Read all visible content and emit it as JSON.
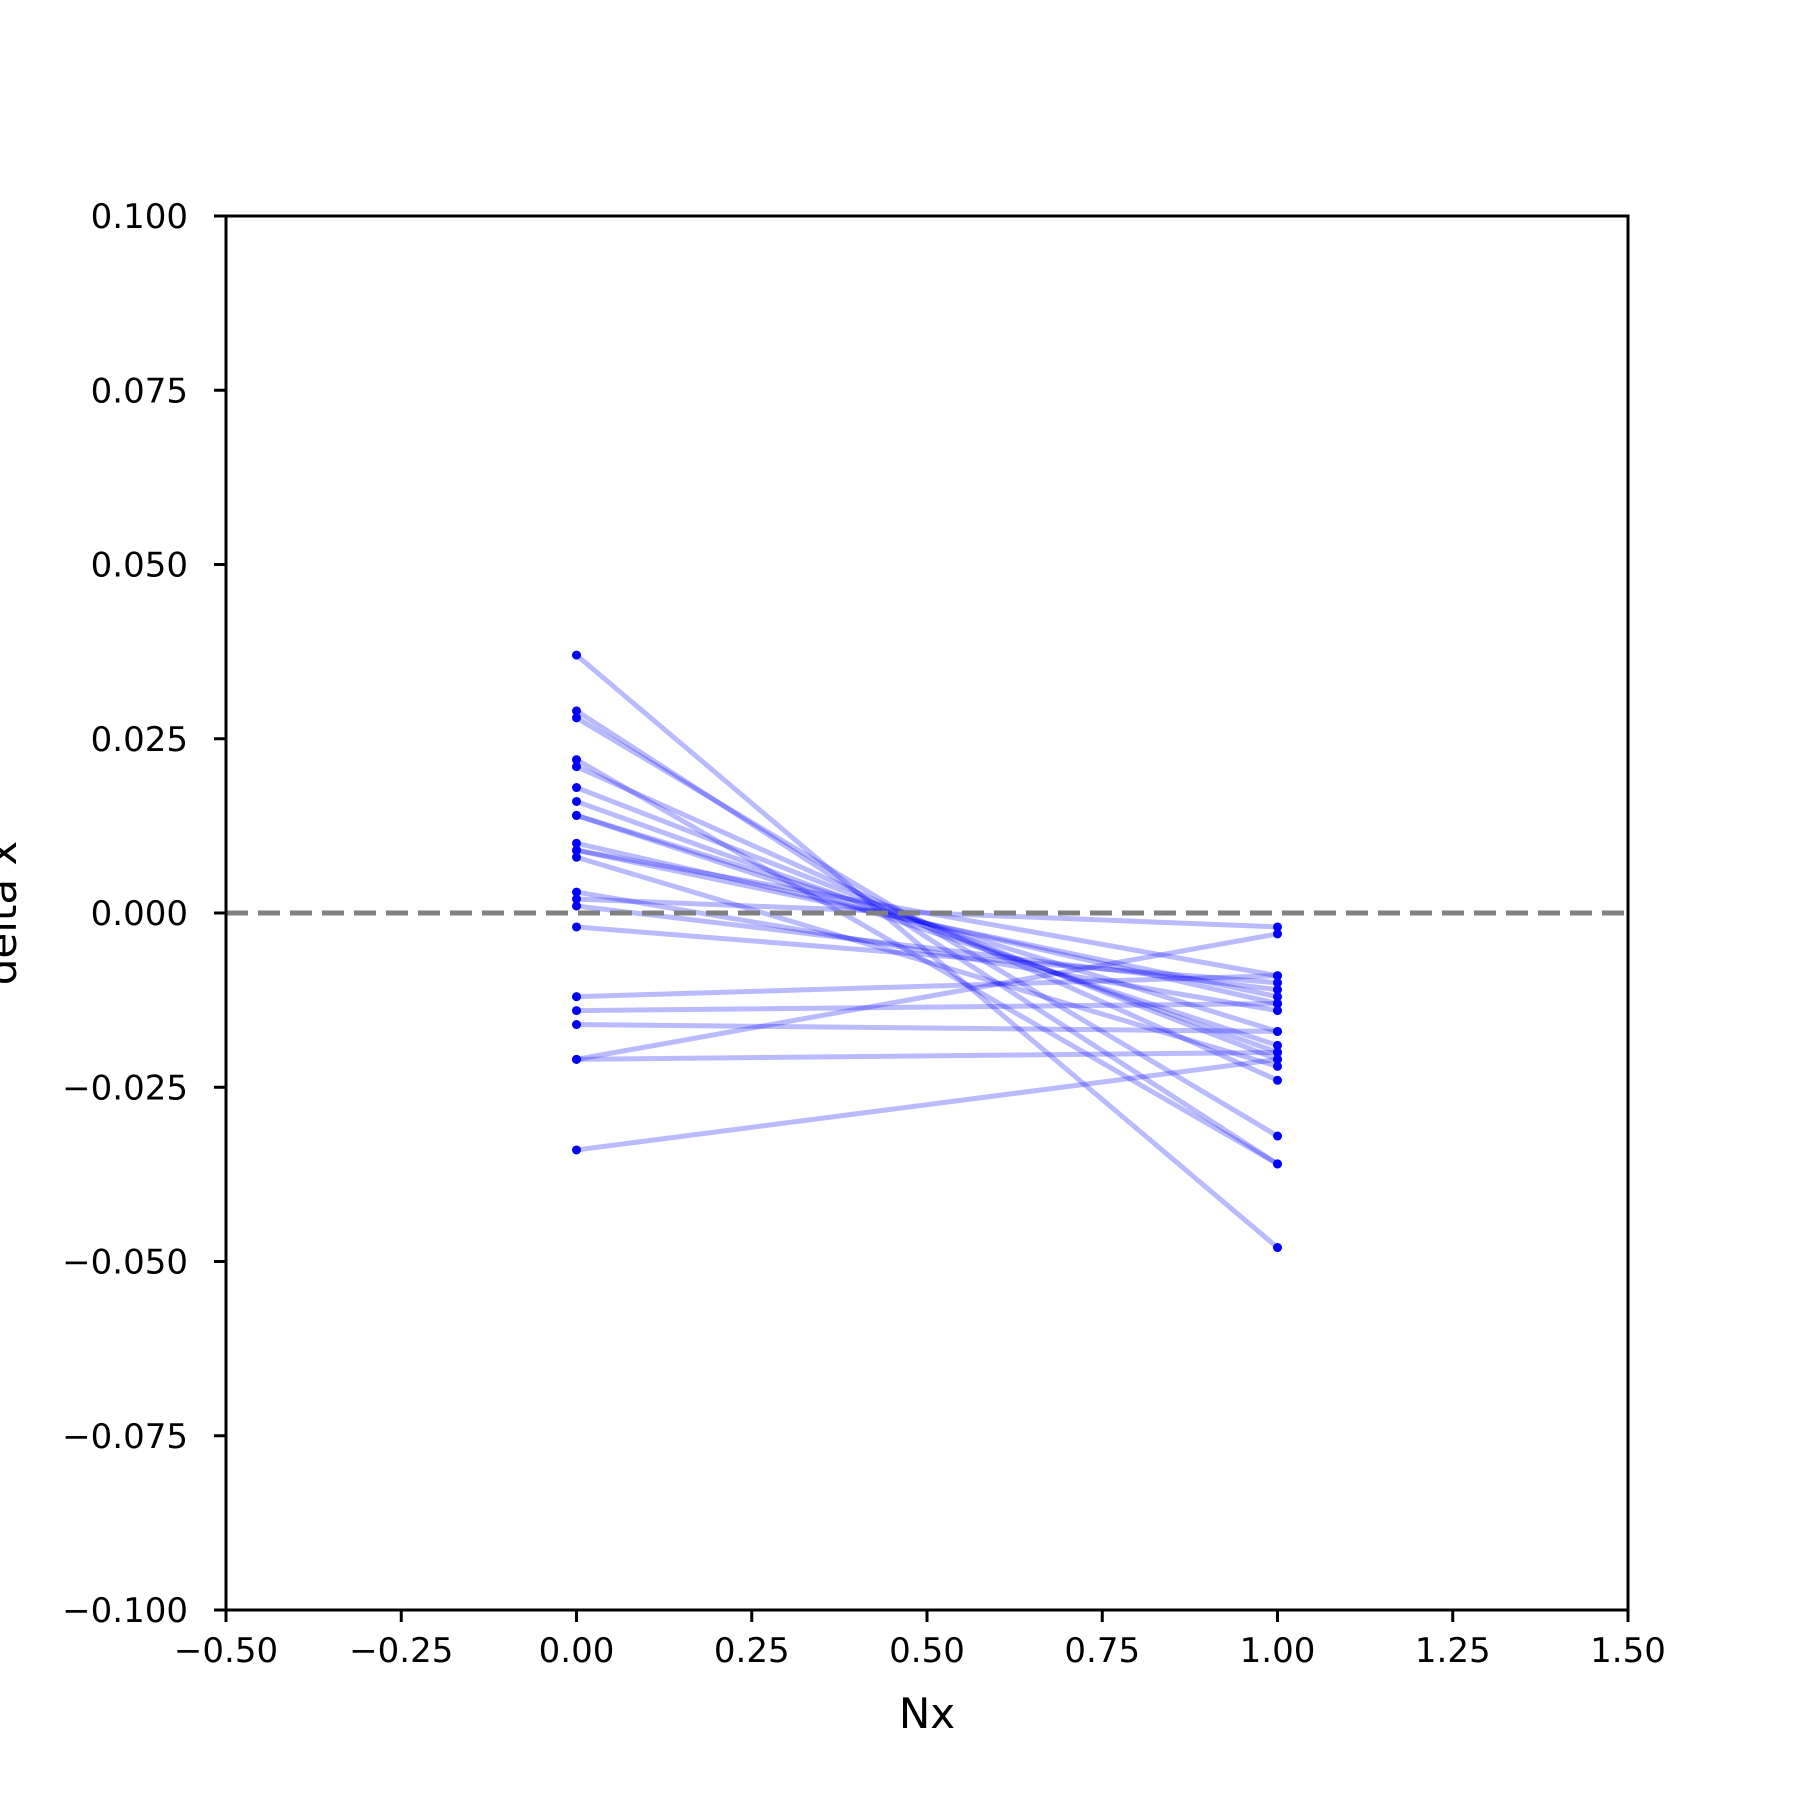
{
  "chart_data": {
    "type": "line",
    "title": "",
    "xlabel": "Nx",
    "ylabel": "delta x",
    "xlim": [
      -0.5,
      1.5
    ],
    "ylim": [
      -0.1,
      0.1
    ],
    "xticks": [
      -0.5,
      -0.25,
      0.0,
      0.25,
      0.5,
      0.75,
      1.0,
      1.25,
      1.5
    ],
    "xtick_labels": [
      "−0.50",
      "−0.25",
      "0.00",
      "0.25",
      "0.50",
      "0.75",
      "1.00",
      "1.25",
      "1.50"
    ],
    "yticks": [
      -0.1,
      -0.075,
      -0.05,
      -0.025,
      0.0,
      0.025,
      0.05,
      0.075,
      0.1
    ],
    "ytick_labels": [
      "−0.100",
      "−0.075",
      "−0.050",
      "−0.025",
      "0.000",
      "0.025",
      "0.050",
      "0.075",
      "0.100"
    ],
    "grid": false,
    "reference_line": {
      "y": 0.0,
      "style": "dashed",
      "color": "#808080"
    },
    "line_color": "#0000ff",
    "line_opacity": 0.27,
    "x": [
      0,
      1
    ],
    "series": [
      {
        "values": [
          0.037,
          -0.048
        ]
      },
      {
        "values": [
          0.029,
          -0.036
        ]
      },
      {
        "values": [
          0.028,
          -0.032
        ]
      },
      {
        "values": [
          0.022,
          -0.036
        ]
      },
      {
        "values": [
          0.021,
          -0.024
        ]
      },
      {
        "values": [
          0.018,
          -0.021
        ]
      },
      {
        "values": [
          0.016,
          -0.02
        ]
      },
      {
        "values": [
          0.014,
          -0.019
        ]
      },
      {
        "values": [
          0.014,
          -0.017
        ]
      },
      {
        "values": [
          0.01,
          -0.013
        ]
      },
      {
        "values": [
          0.009,
          -0.012
        ]
      },
      {
        "values": [
          0.009,
          -0.009
        ]
      },
      {
        "values": [
          0.008,
          -0.022
        ]
      },
      {
        "values": [
          0.003,
          -0.014
        ]
      },
      {
        "values": [
          0.002,
          -0.002
        ]
      },
      {
        "values": [
          0.001,
          -0.011
        ]
      },
      {
        "values": [
          -0.002,
          -0.01
        ]
      },
      {
        "values": [
          -0.012,
          -0.009
        ]
      },
      {
        "values": [
          -0.014,
          -0.013
        ]
      },
      {
        "values": [
          -0.016,
          -0.017
        ]
      },
      {
        "values": [
          -0.021,
          -0.003
        ]
      },
      {
        "values": [
          -0.021,
          -0.02
        ]
      },
      {
        "values": [
          -0.034,
          -0.021
        ]
      }
    ]
  }
}
